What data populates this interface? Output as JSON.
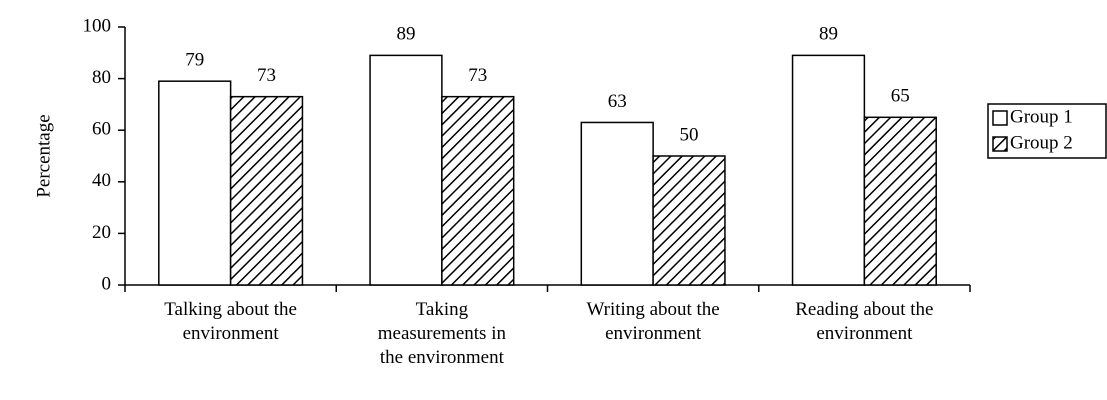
{
  "chart_data": {
    "type": "bar",
    "categories": [
      "Talking about the environment",
      "Taking measurements in the environment",
      "Writing about the environment",
      "Reading about the environment"
    ],
    "series": [
      {
        "name": "Group 1",
        "color": "#ffffff",
        "values": [
          79,
          89,
          63,
          89
        ]
      },
      {
        "name": "Group 2",
        "color": "hatch",
        "values": [
          73,
          73,
          50,
          65
        ]
      }
    ],
    "ylabel": "Percentage",
    "ylim": [
      0,
      100
    ],
    "yticks": [
      0,
      20,
      40,
      60,
      80,
      100
    ],
    "grid": false,
    "legend": "right"
  }
}
